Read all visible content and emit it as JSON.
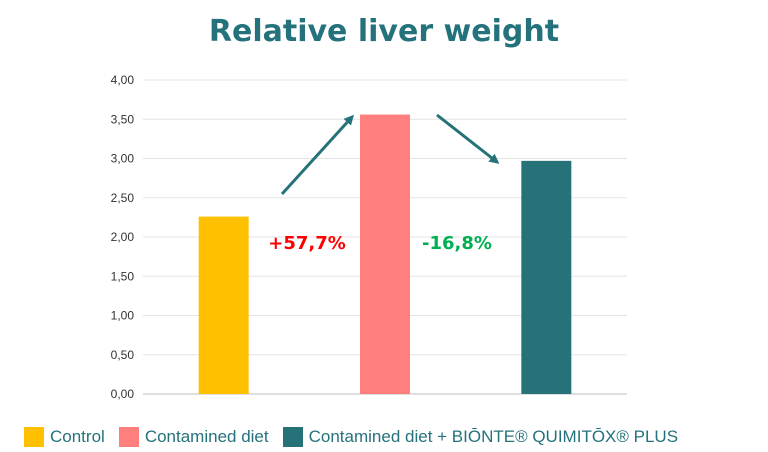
{
  "chart_data": {
    "type": "bar",
    "title": "Relative liver weight",
    "categories": [
      "Control",
      "Contamined diet",
      "Contamined diet + BIŌNTE® QUIMITŌX® PLUS"
    ],
    "values": [
      2.26,
      3.56,
      2.97
    ],
    "colors": [
      "#ffc000",
      "#ff7f7f",
      "#267279"
    ],
    "ylim": [
      0,
      4
    ],
    "yticks": [
      "0,00",
      "0,50",
      "1,00",
      "1,50",
      "2,00",
      "2,50",
      "3,00",
      "3,50",
      "4,00"
    ],
    "grid": true,
    "legend": "bottom",
    "annotations": [
      {
        "text": "+57,7%",
        "color": "#ff0000"
      },
      {
        "text": "-16,8%",
        "color": "#00b050"
      }
    ],
    "arrow_color": "#267279"
  }
}
